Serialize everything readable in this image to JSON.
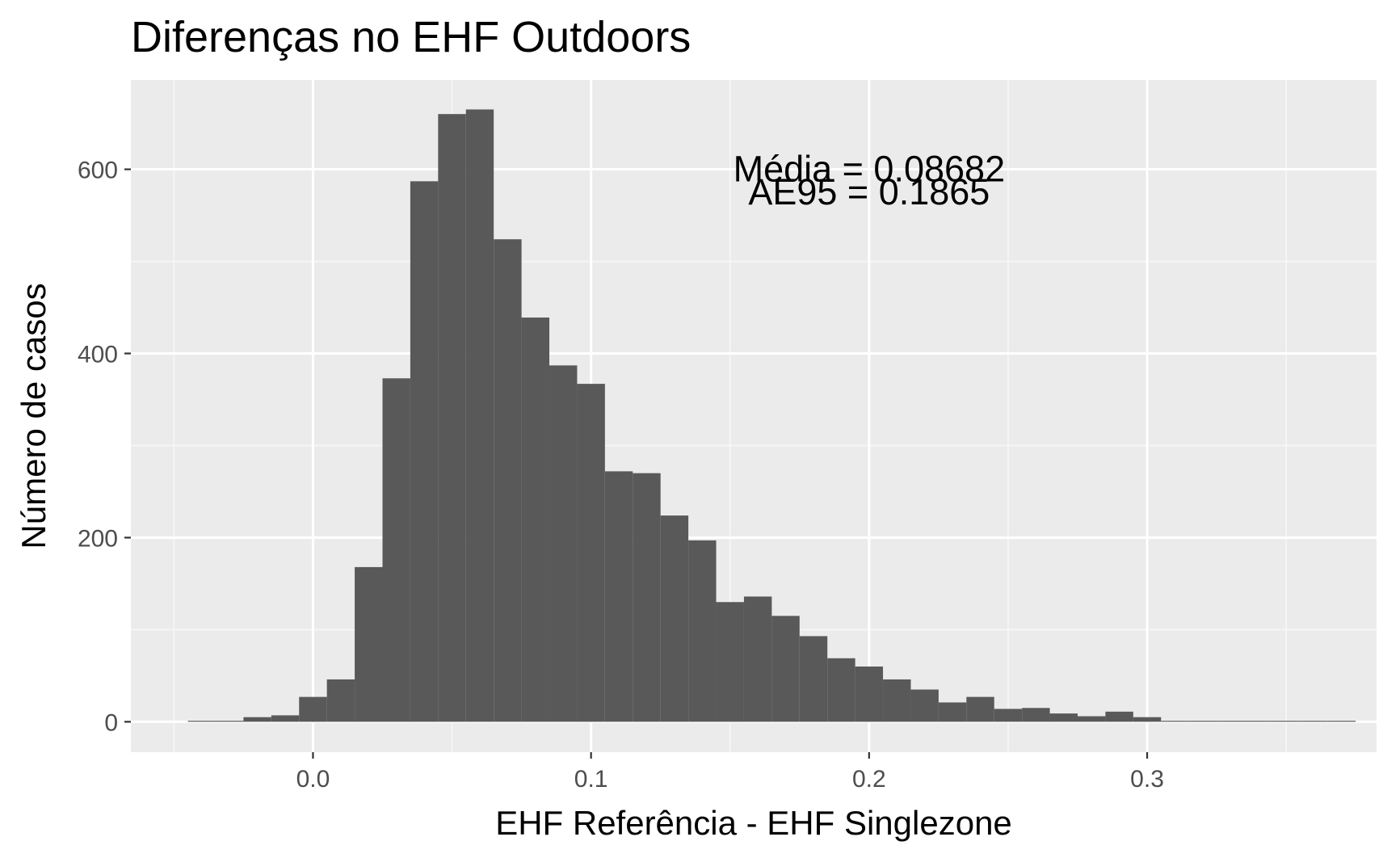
{
  "colors": {
    "panel_background": "#ebebeb",
    "grid_major": "#ffffff",
    "grid_minor": "#f7f7f7",
    "bar_fill": "#595959",
    "tick_color": "#333333",
    "tick_label": "#4d4d4d",
    "text": "#000000"
  },
  "chart_data": {
    "type": "bar",
    "title": "Diferenças no EHF Outdoors",
    "xlabel": "EHF Referência - EHF Singlezone",
    "ylabel": "Número de casos",
    "xlim": [
      -0.0655,
      0.3825
    ],
    "ylim": [
      -33,
      697
    ],
    "grid": true,
    "x_ticks": [
      0.0,
      0.1,
      0.2,
      0.3
    ],
    "x_tick_labels": [
      "0.0",
      "0.1",
      "0.2",
      "0.3"
    ],
    "x_minor_ticks": [
      -0.05,
      0.05,
      0.15,
      0.25,
      0.35
    ],
    "y_ticks": [
      0,
      200,
      400,
      600
    ],
    "y_tick_labels": [
      "0",
      "200",
      "400",
      "600"
    ],
    "y_minor_ticks": [
      100,
      300,
      500
    ],
    "bin_width": 0.01,
    "bin_starts": [
      -0.045,
      -0.035,
      -0.025,
      -0.015,
      -0.005,
      0.005,
      0.015,
      0.025,
      0.035,
      0.045,
      0.055,
      0.065,
      0.075,
      0.085,
      0.095,
      0.105,
      0.115,
      0.125,
      0.135,
      0.145,
      0.155,
      0.165,
      0.175,
      0.185,
      0.195,
      0.205,
      0.215,
      0.225,
      0.235,
      0.245,
      0.255,
      0.265,
      0.275,
      0.285,
      0.295,
      0.305,
      0.315,
      0.325,
      0.335,
      0.345,
      0.355,
      0.365
    ],
    "values": [
      1,
      1,
      5,
      7,
      27,
      46,
      168,
      373,
      587,
      660,
      665,
      524,
      439,
      387,
      367,
      272,
      270,
      224,
      197,
      130,
      136,
      115,
      93,
      69,
      60,
      46,
      35,
      21,
      27,
      14,
      15,
      9,
      6,
      11,
      5,
      1,
      1,
      1,
      1,
      0,
      0,
      1
    ],
    "annotations": [
      "Média = 0.08682",
      "AE95 = 0.1865"
    ],
    "annotation_x": 0.2,
    "annotation_y": [
      600,
      575
    ]
  }
}
